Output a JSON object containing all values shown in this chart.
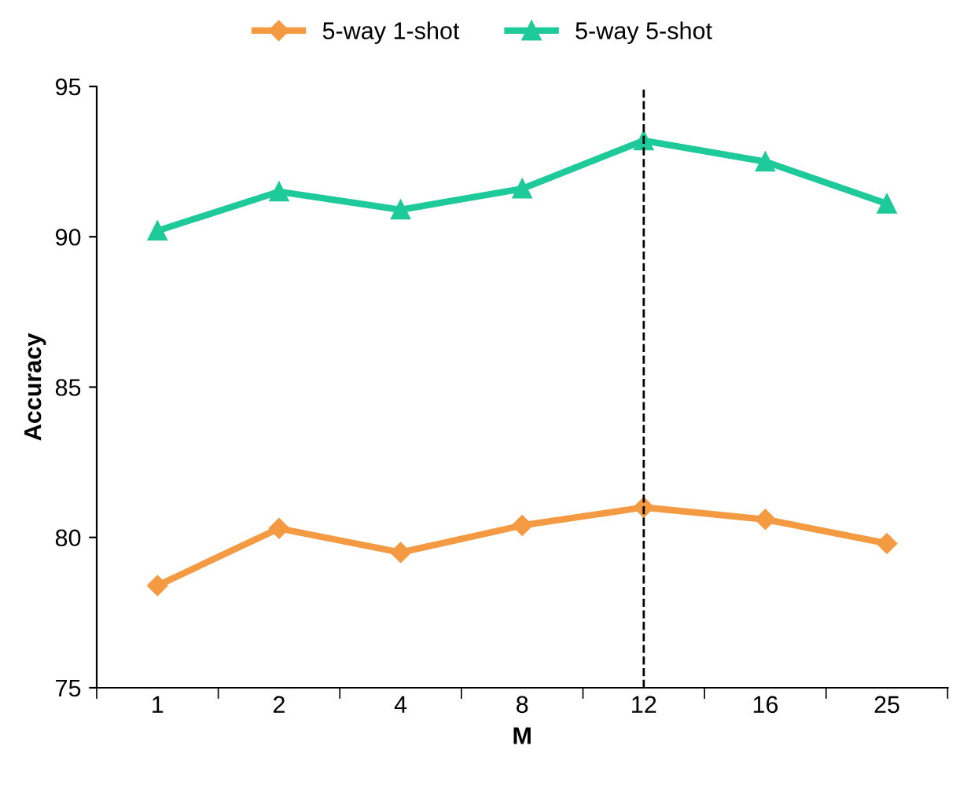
{
  "chart_data": {
    "type": "line",
    "xlabel": "M",
    "ylabel": "Accuracy",
    "categories": [
      "1",
      "2",
      "4",
      "8",
      "12",
      "16",
      "25"
    ],
    "series": [
      {
        "name": "5-way 1-shot",
        "color": "#f39a42",
        "marker": "diamond",
        "values": [
          78.4,
          80.3,
          79.5,
          80.4,
          81.0,
          80.6,
          79.8
        ]
      },
      {
        "name": "5-way 5-shot",
        "color": "#1ec99a",
        "marker": "triangle",
        "values": [
          90.2,
          91.5,
          90.9,
          91.6,
          93.2,
          92.5,
          91.1
        ]
      }
    ],
    "ylim": [
      75,
      95
    ],
    "yticks": [
      75,
      80,
      85,
      90,
      95
    ],
    "grid": false,
    "legend": "top",
    "line_style": "solid",
    "ref_lines": [
      {
        "axis": "x",
        "value": "12",
        "color": "#000000",
        "line_style": "dashed"
      }
    ]
  }
}
